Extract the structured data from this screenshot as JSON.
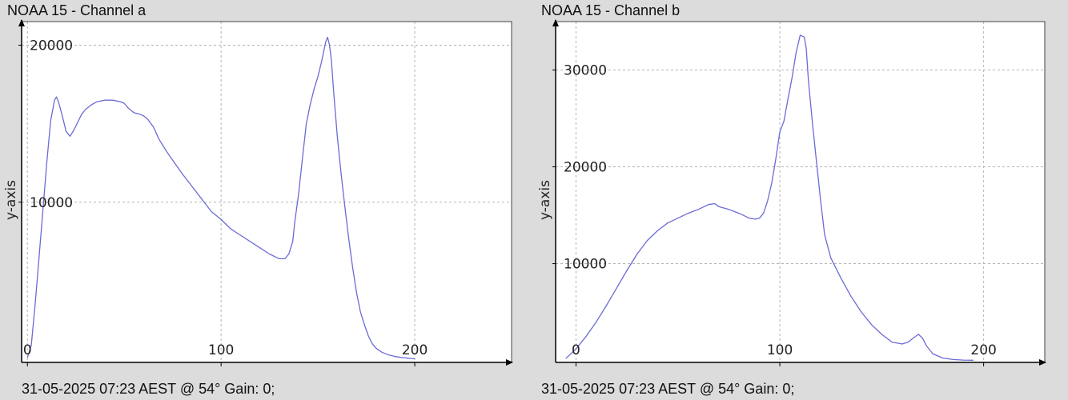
{
  "panels": [
    {
      "title": "NOAA 15 - Channel a",
      "footer": "31-05-2025 07:23 AEST @ 54° Gain: 0;"
    },
    {
      "title": "NOAA 15 - Channel b",
      "footer": "31-05-2025 07:23 AEST @ 54° Gain: 0;"
    }
  ],
  "chart_data": [
    {
      "type": "line",
      "title": "NOAA 15 - Channel a",
      "xlabel": "",
      "ylabel": "y-axis",
      "xlim": [
        -3,
        250
      ],
      "ylim": [
        -200,
        21500
      ],
      "x_ticks": [
        0,
        100,
        200
      ],
      "y_ticks": [
        10000,
        20000
      ],
      "grid": true,
      "line_color": "#6b6bd6",
      "series": [
        {
          "x": [
            0,
            2,
            4,
            6,
            8,
            10,
            12,
            14,
            15,
            16,
            18,
            20,
            22,
            24,
            26,
            28,
            30,
            33,
            36,
            40,
            44,
            48,
            50,
            52,
            55,
            58,
            60,
            62,
            65,
            68,
            72,
            76,
            80,
            85,
            90,
            95,
            100,
            105,
            110,
            115,
            120,
            125,
            130,
            133,
            135,
            137,
            138,
            140,
            142,
            144,
            146,
            148,
            150,
            152,
            154,
            155,
            156,
            157,
            158,
            160,
            162,
            164,
            166,
            168,
            170,
            172,
            174,
            176,
            178,
            180,
            183,
            186,
            190,
            194,
            198,
            200
          ],
          "y": [
            100,
            900,
            3500,
            6500,
            9500,
            12500,
            15200,
            16500,
            16700,
            16400,
            15500,
            14500,
            14200,
            14600,
            15100,
            15600,
            15900,
            16200,
            16400,
            16500,
            16500,
            16400,
            16300,
            16000,
            15700,
            15600,
            15500,
            15300,
            14800,
            14000,
            13200,
            12500,
            11800,
            11000,
            10200,
            9400,
            8900,
            8300,
            7900,
            7500,
            7100,
            6700,
            6400,
            6400,
            6700,
            7500,
            8700,
            10500,
            12800,
            15000,
            16200,
            17200,
            18000,
            19000,
            20200,
            20500,
            20000,
            19000,
            17200,
            14200,
            11800,
            9600,
            7600,
            5800,
            4200,
            3000,
            2200,
            1500,
            1000,
            700,
            450,
            300,
            170,
            100,
            50,
            30
          ]
        }
      ]
    },
    {
      "type": "line",
      "title": "NOAA 15 - Channel b",
      "xlabel": "",
      "ylabel": "y-axis",
      "xlim": [
        -10,
        230
      ],
      "ylim": [
        -200,
        35000
      ],
      "x_ticks": [
        0,
        100,
        200
      ],
      "y_ticks": [
        10000,
        20000,
        30000
      ],
      "grid": true,
      "line_color": "#6b6bd6",
      "series": [
        {
          "x": [
            -5,
            0,
            5,
            10,
            15,
            20,
            25,
            30,
            35,
            40,
            45,
            50,
            55,
            60,
            65,
            68,
            70,
            75,
            80,
            85,
            88,
            90,
            92,
            94,
            96,
            98,
            100,
            102,
            104,
            106,
            108,
            110,
            112,
            113,
            114,
            116,
            118,
            120,
            122,
            125,
            130,
            135,
            140,
            145,
            150,
            155,
            160,
            163,
            166,
            168,
            170,
            172,
            175,
            180,
            185,
            190,
            195
          ],
          "y": [
            200,
            1200,
            2500,
            4000,
            5700,
            7500,
            9300,
            11000,
            12400,
            13400,
            14200,
            14700,
            15200,
            15600,
            16100,
            16200,
            15900,
            15600,
            15200,
            14700,
            14600,
            14700,
            15200,
            16500,
            18300,
            20800,
            23600,
            24700,
            27000,
            29200,
            31800,
            33600,
            33400,
            32200,
            29000,
            24500,
            20500,
            16500,
            13000,
            10600,
            8500,
            6600,
            5000,
            3700,
            2700,
            1900,
            1700,
            1900,
            2400,
            2700,
            2300,
            1500,
            700,
            250,
            100,
            40,
            20
          ]
        }
      ]
    }
  ]
}
